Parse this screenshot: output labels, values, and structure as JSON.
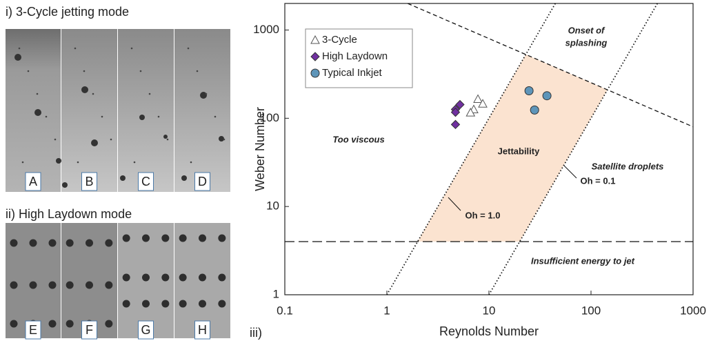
{
  "panels": {
    "jetting_title": "i) 3-Cycle jetting mode",
    "laydown_title": "ii) High Laydown mode",
    "chart_title": "iii)",
    "jetting_labels": [
      "A",
      "B",
      "C",
      "D"
    ],
    "laydown_labels": [
      "E",
      "F",
      "G",
      "H"
    ]
  },
  "chart_data": {
    "type": "scatter",
    "x_label": "Reynolds Number",
    "y_label": "Weber Number",
    "xscale": "log",
    "yscale": "log",
    "xlim": [
      0.1,
      1000
    ],
    "ylim": [
      1,
      2000
    ],
    "xticks": [
      0.1,
      1,
      10,
      100,
      1000
    ],
    "yticks": [
      1,
      10,
      100,
      1000
    ],
    "legend": "upper left",
    "series": [
      {
        "name": "3-Cycle",
        "marker": "triangle",
        "color": "#ffffff",
        "x": [
          7.8,
          8.7,
          7.1,
          6.6
        ],
        "values": [
          165,
          146,
          126,
          116
        ]
      },
      {
        "name": "High Laydown",
        "marker": "diamond",
        "color": "#7030a0",
        "x": [
          5.2,
          4.7,
          4.7,
          4.7
        ],
        "values": [
          143,
          126,
          117,
          85
        ]
      },
      {
        "name": "Typical Inkjet",
        "marker": "circle",
        "color": "#5e95b9",
        "x": [
          24.7,
          37,
          28
        ],
        "values": [
          205,
          180,
          124
        ]
      }
    ],
    "lines": [
      {
        "label": "Oh = 1.0",
        "style": "dotted",
        "x": [
          1,
          44.7
        ],
        "y": [
          1,
          2000
        ]
      },
      {
        "label": "Oh = 0.1",
        "style": "dotted",
        "x": [
          10,
          447
        ],
        "y": [
          1,
          2000
        ]
      },
      {
        "style": "short-dash",
        "x": [
          1.6,
          1000
        ],
        "y": [
          2000,
          80
        ]
      },
      {
        "style": "long-dash",
        "x": [
          0.1,
          1000
        ],
        "y": [
          4,
          4
        ]
      }
    ],
    "region_color": "#fbe3d0",
    "annotations": [
      "Onset of",
      "splashing",
      "Too viscous",
      "Jettability",
      "Satellite droplets",
      "Insufficient energy to jet"
    ]
  }
}
